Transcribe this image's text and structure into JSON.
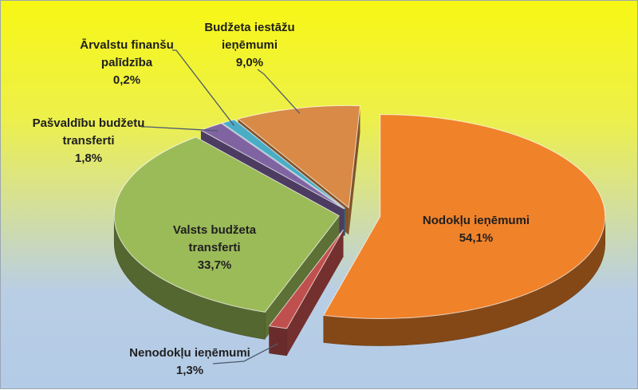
{
  "chart_data": {
    "type": "pie",
    "title": "",
    "unit": "%",
    "legend": "none",
    "three_d": true,
    "slices": [
      {
        "name": "Nodokļu ieņēmumi",
        "value_label": "54,1%",
        "value": 54.1,
        "color": "#f0822a",
        "exploded": true
      },
      {
        "name": "Nenodokļu ieņēmumi",
        "value_label": "1,3%",
        "value": 1.3,
        "color": "#c0504d",
        "exploded": true
      },
      {
        "name": "Valsts budžeta transferti",
        "value_label": "33,7%",
        "value": 33.7,
        "color": "#9bbb59",
        "exploded": true
      },
      {
        "name": "Pašvaldību budžetu transferti",
        "value_label": "1,8%",
        "value": 1.8,
        "color": "#8064a2",
        "exploded": true
      },
      {
        "name": "Ārvalstu finanšu palīdzība",
        "value_label": "0,2%",
        "value": 0.2,
        "color": "#4bacc6",
        "exploded": true
      },
      {
        "name": "Budžeta iestāžu ieņēmumi",
        "value_label": "9,0%",
        "value": 9.0,
        "color": "#d98a46",
        "exploded": true
      }
    ]
  }
}
